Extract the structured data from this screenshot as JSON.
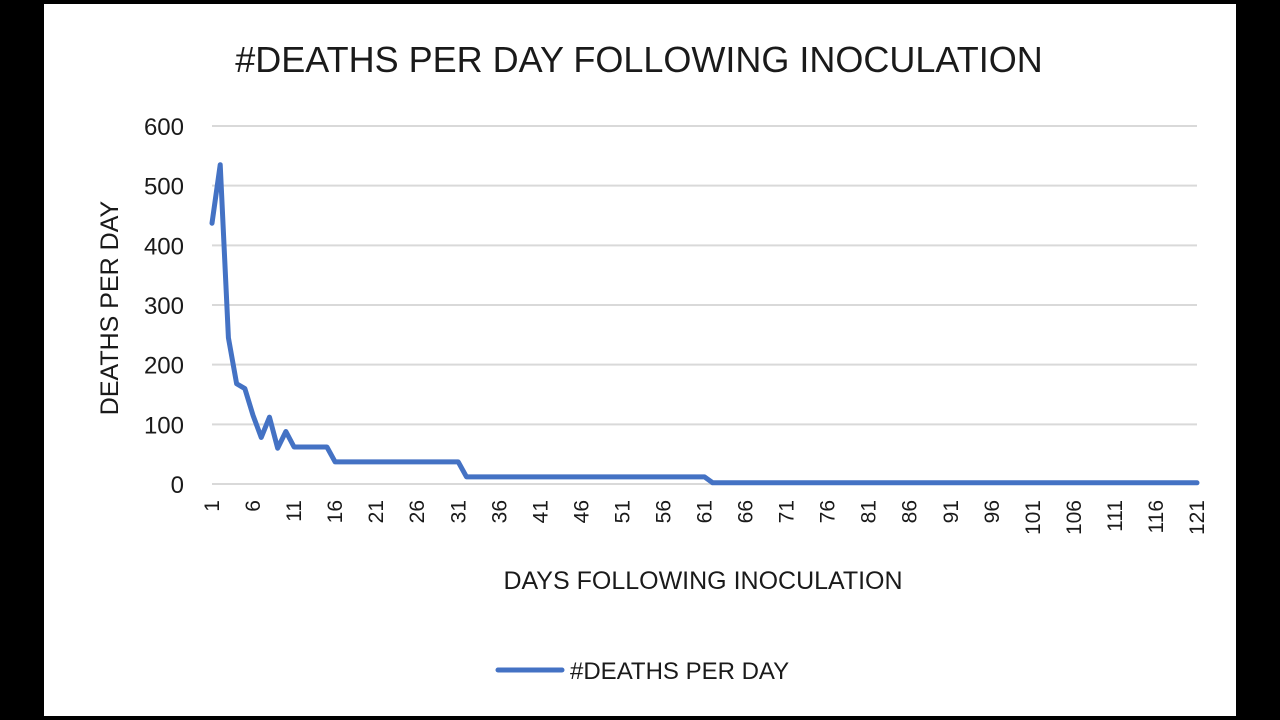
{
  "chart_data": {
    "type": "line",
    "title": "#DEATHS PER DAY FOLLOWING INOCULATION",
    "xlabel": "DAYS FOLLOWING INOCULATION",
    "ylabel": "DEATHS PER DAY",
    "ylim": [
      0,
      600
    ],
    "yticks": [
      "0",
      "100",
      "200",
      "300",
      "400",
      "500",
      "600"
    ],
    "xlim": [
      1,
      121
    ],
    "xticks": [
      "1",
      "6",
      "11",
      "16",
      "21",
      "26",
      "31",
      "36",
      "41",
      "46",
      "51",
      "56",
      "61",
      "66",
      "71",
      "76",
      "81",
      "86",
      "91",
      "96",
      "101",
      "106",
      "111",
      "116",
      "121"
    ],
    "grid": true,
    "legend_position": "bottom",
    "series": [
      {
        "name": "#DEATHS PER DAY",
        "color": "#4472c4",
        "x": [
          1,
          2,
          3,
          4,
          5,
          6,
          7,
          8,
          9,
          10,
          11,
          12,
          13,
          14,
          15,
          16,
          17,
          18,
          19,
          20,
          21,
          22,
          23,
          24,
          25,
          26,
          27,
          28,
          29,
          30,
          31,
          32,
          33,
          34,
          35,
          36,
          37,
          38,
          39,
          40,
          41,
          42,
          43,
          44,
          45,
          46,
          47,
          48,
          49,
          50,
          51,
          52,
          53,
          54,
          55,
          56,
          57,
          58,
          59,
          60,
          61,
          62,
          63,
          64,
          65,
          66,
          67,
          68,
          69,
          70,
          71,
          72,
          73,
          74,
          75,
          76,
          77,
          78,
          79,
          80,
          81,
          82,
          83,
          84,
          85,
          86,
          87,
          88,
          89,
          90,
          91,
          92,
          93,
          94,
          95,
          96,
          97,
          98,
          99,
          100,
          101,
          102,
          103,
          104,
          105,
          106,
          107,
          108,
          109,
          110,
          111,
          112,
          113,
          114,
          115,
          116,
          117,
          118,
          119,
          120,
          121
        ],
        "values": [
          437,
          535,
          245,
          168,
          160,
          115,
          78,
          112,
          60,
          88,
          62,
          62,
          62,
          62,
          62,
          37,
          37,
          37,
          37,
          37,
          37,
          37,
          37,
          37,
          37,
          37,
          37,
          37,
          37,
          37,
          37,
          12,
          12,
          12,
          12,
          12,
          12,
          12,
          12,
          12,
          12,
          12,
          12,
          12,
          12,
          12,
          12,
          12,
          12,
          12,
          12,
          12,
          12,
          12,
          12,
          12,
          12,
          12,
          12,
          12,
          12,
          2,
          2,
          2,
          2,
          2,
          2,
          2,
          2,
          2,
          2,
          2,
          2,
          2,
          2,
          2,
          2,
          2,
          2,
          2,
          2,
          2,
          2,
          2,
          2,
          2,
          2,
          2,
          2,
          2,
          2,
          2,
          2,
          2,
          2,
          2,
          2,
          2,
          2,
          2,
          2,
          2,
          2,
          2,
          2,
          2,
          2,
          2,
          2,
          2,
          2,
          2,
          2,
          2,
          2,
          2,
          2,
          2,
          2,
          2,
          2
        ]
      }
    ]
  }
}
